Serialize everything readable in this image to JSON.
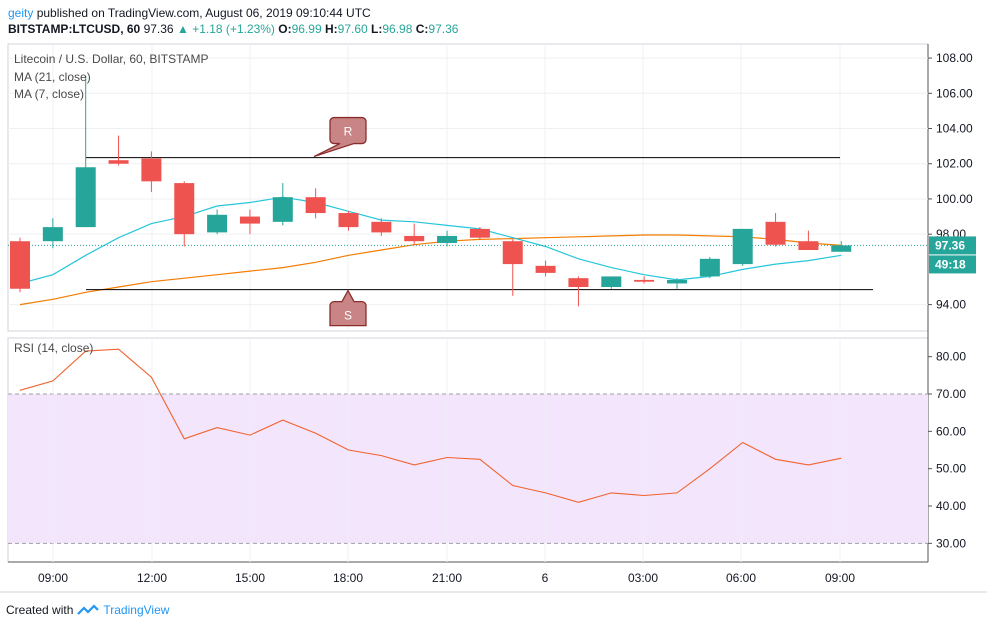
{
  "header": {
    "user": "geity",
    "published_text": "published on TradingView.com, August 06, 2019 09:10:44 UTC",
    "symbol": "BITSTAMP:LTCUSD, 60",
    "last": "97.36",
    "change": "+1.18 (+1.23%)",
    "o_label": "O:",
    "o": "96.99",
    "h_label": "H:",
    "h": "97.60",
    "l_label": "L:",
    "l": "96.98",
    "c_label": "C:",
    "c": "97.36"
  },
  "legend": {
    "title": "Litecoin / U.S. Dollar, 60, BITSTAMP",
    "ma21": "MA (21, close)",
    "ma7": "MA (7, close)",
    "rsi": "RSI (14, close)"
  },
  "annotations": {
    "resistance": "R",
    "support": "S"
  },
  "price_badge": {
    "price": "97.36",
    "countdown": "49:18"
  },
  "footer": {
    "created_with": "Created with",
    "brand": "TradingView"
  },
  "colors": {
    "up": "#26a69a",
    "down": "#ef5350",
    "ma21": "#f57c00",
    "ma7": "#26c6da",
    "rsi": "#f0632f",
    "rsi_band": "#f3e5fc",
    "label_fill": "#c98585"
  },
  "chart_data": {
    "type": "candlestick",
    "x_ticks": [
      "09:00",
      "12:00",
      "15:00",
      "18:00",
      "21:00",
      "6",
      "03:00",
      "06:00",
      "09:00"
    ],
    "price_axis": {
      "ticks": [
        "108.00",
        "106.00",
        "104.00",
        "102.00",
        "100.00",
        "98.00",
        "94.00"
      ],
      "ylim": [
        92.5,
        108.8
      ]
    },
    "candles": [
      {
        "o": 97.6,
        "h": 97.8,
        "l": 94.7,
        "c": 94.9
      },
      {
        "o": 97.6,
        "h": 98.9,
        "l": 97.2,
        "c": 98.4
      },
      {
        "o": 98.4,
        "h": 107.0,
        "l": 98.4,
        "c": 101.8
      },
      {
        "o": 102.2,
        "h": 103.6,
        "l": 101.9,
        "c": 102.0
      },
      {
        "o": 102.3,
        "h": 102.7,
        "l": 100.4,
        "c": 101.0
      },
      {
        "o": 100.9,
        "h": 101.0,
        "l": 97.3,
        "c": 98.0
      },
      {
        "o": 98.1,
        "h": 99.4,
        "l": 98.0,
        "c": 99.1
      },
      {
        "o": 99.0,
        "h": 99.4,
        "l": 98.0,
        "c": 98.6
      },
      {
        "o": 98.7,
        "h": 100.9,
        "l": 98.5,
        "c": 100.1
      },
      {
        "o": 100.1,
        "h": 100.6,
        "l": 98.9,
        "c": 99.2
      },
      {
        "o": 99.2,
        "h": 99.3,
        "l": 98.2,
        "c": 98.4
      },
      {
        "o": 98.7,
        "h": 98.9,
        "l": 97.9,
        "c": 98.1
      },
      {
        "o": 97.9,
        "h": 98.6,
        "l": 97.4,
        "c": 97.6
      },
      {
        "o": 97.5,
        "h": 98.2,
        "l": 97.3,
        "c": 97.9
      },
      {
        "o": 98.3,
        "h": 98.4,
        "l": 97.7,
        "c": 97.8
      },
      {
        "o": 97.6,
        "h": 97.7,
        "l": 94.5,
        "c": 96.3
      },
      {
        "o": 96.2,
        "h": 96.5,
        "l": 95.6,
        "c": 95.8
      },
      {
        "o": 95.5,
        "h": 95.6,
        "l": 93.9,
        "c": 95.0
      },
      {
        "o": 95.0,
        "h": 95.6,
        "l": 94.9,
        "c": 95.6
      },
      {
        "o": 95.4,
        "h": 95.6,
        "l": 95.2,
        "c": 95.3
      },
      {
        "o": 95.2,
        "h": 95.5,
        "l": 94.9,
        "c": 95.4
      },
      {
        "o": 95.6,
        "h": 96.7,
        "l": 95.5,
        "c": 96.6
      },
      {
        "o": 96.3,
        "h": 98.3,
        "l": 96.2,
        "c": 98.3
      },
      {
        "o": 98.7,
        "h": 99.2,
        "l": 97.3,
        "c": 97.4
      },
      {
        "o": 97.6,
        "h": 98.2,
        "l": 97.1,
        "c": 97.1
      },
      {
        "o": 97.0,
        "h": 97.6,
        "l": 97.0,
        "c": 97.36
      }
    ],
    "ma7": [
      95.2,
      95.7,
      96.8,
      97.8,
      98.6,
      99.0,
      99.6,
      99.8,
      100.1,
      99.8,
      99.3,
      98.8,
      98.7,
      98.5,
      98.3,
      97.8,
      97.3,
      96.6,
      96.1,
      95.7,
      95.4,
      95.6,
      96.0,
      96.3,
      96.5,
      96.8
    ],
    "ma21": [
      94.0,
      94.3,
      94.7,
      95.0,
      95.3,
      95.5,
      95.7,
      95.9,
      96.1,
      96.4,
      96.8,
      97.1,
      97.4,
      97.6,
      97.7,
      97.75,
      97.8,
      97.85,
      97.9,
      97.95,
      97.95,
      97.9,
      97.85,
      97.7,
      97.5,
      97.36
    ],
    "resistance": 102.35,
    "support": 94.85,
    "rsi": {
      "ticks": [
        "80.00",
        "70.00",
        "60.00",
        "50.00",
        "40.00",
        "30.00"
      ],
      "upper": 70,
      "lower": 30,
      "ylim": [
        25,
        85
      ],
      "values": [
        71,
        73.5,
        81.5,
        82,
        74.5,
        58,
        61,
        59,
        63,
        59.5,
        55,
        53.5,
        51,
        53,
        52.5,
        45.5,
        43.5,
        41,
        43.5,
        42.8,
        43.5,
        50,
        57,
        52.5,
        51,
        52.8
      ]
    }
  }
}
